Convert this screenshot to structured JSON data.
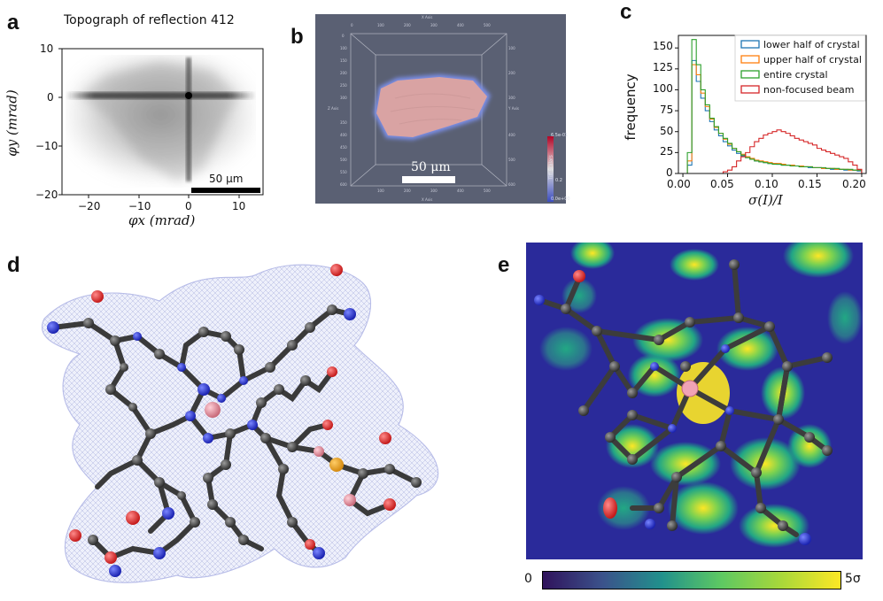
{
  "panels": {
    "a": {
      "label": "a",
      "title": "Topograph of reflection 412",
      "xlabel": "φx (mrad)",
      "ylabel": "φy (mrad)",
      "xticks": [
        "−20",
        "−10",
        "0",
        "10"
      ],
      "yticks": [
        "10",
        "0",
        "−10",
        "−20"
      ],
      "scalebar": "50 μm"
    },
    "b": {
      "label": "b",
      "scalebar": "50 μm",
      "colorbar_max": "6.5e-01",
      "colorbar_mid": "0.2",
      "colorbar_min": "0.0e+00",
      "colorbar_title": "Tiff Scalars",
      "x_axis": "X Axis",
      "y_axis": "Y Axis",
      "z_axis": "Z Axis",
      "top_ticks": [
        "0",
        "100",
        "200",
        "300",
        "400",
        "500"
      ],
      "side_ticks": [
        "0",
        "100",
        "150",
        "200",
        "250",
        "300",
        "350",
        "400",
        "450",
        "500",
        "550",
        "600"
      ]
    },
    "c": {
      "label": "c"
    },
    "d": {
      "label": "d"
    },
    "e": {
      "label": "e",
      "colorbar_min": "0",
      "colorbar_max": "5σ"
    }
  },
  "chart_data": {
    "type": "line",
    "title": "",
    "xlabel": "σ(I)/I",
    "ylabel": "frequency",
    "xlim": [
      -0.005,
      0.205
    ],
    "ylim": [
      0,
      165
    ],
    "xticks": [
      0.0,
      0.05,
      0.1,
      0.15,
      0.2
    ],
    "xtick_labels": [
      "0.00",
      "0.05",
      "0.10",
      "0.15",
      "0.20"
    ],
    "yticks": [
      0,
      25,
      50,
      75,
      100,
      125,
      150
    ],
    "legend_position": "top-right",
    "x": [
      0.0,
      0.005,
      0.01,
      0.015,
      0.02,
      0.025,
      0.03,
      0.035,
      0.04,
      0.045,
      0.05,
      0.055,
      0.06,
      0.065,
      0.07,
      0.075,
      0.08,
      0.085,
      0.09,
      0.095,
      0.1,
      0.105,
      0.11,
      0.115,
      0.12,
      0.125,
      0.13,
      0.135,
      0.14,
      0.145,
      0.15,
      0.155,
      0.16,
      0.165,
      0.17,
      0.175,
      0.18,
      0.185,
      0.19,
      0.195
    ],
    "series": [
      {
        "name": "lower half of crystal",
        "color": "#1f77b4",
        "values": [
          0,
          10,
          135,
          110,
          90,
          75,
          62,
          52,
          45,
          38,
          33,
          28,
          24,
          21,
          19,
          17,
          15,
          14,
          13,
          12,
          12,
          11,
          10,
          10,
          9,
          9,
          8,
          8,
          7,
          7,
          7,
          6,
          6,
          5,
          5,
          5,
          4,
          4,
          4,
          3
        ]
      },
      {
        "name": "upper half of crystal",
        "color": "#ff7f0e",
        "values": [
          0,
          15,
          130,
          118,
          96,
          80,
          65,
          55,
          48,
          41,
          35,
          30,
          26,
          23,
          20,
          18,
          16,
          15,
          14,
          13,
          12,
          12,
          11,
          10,
          10,
          9,
          9,
          8,
          8,
          7,
          7,
          6,
          6,
          6,
          5,
          5,
          5,
          4,
          4,
          4
        ]
      },
      {
        "name": "entire crystal",
        "color": "#2ca02c",
        "values": [
          0,
          25,
          160,
          130,
          100,
          82,
          66,
          56,
          48,
          42,
          36,
          30,
          26,
          22,
          19,
          17,
          15,
          14,
          13,
          12,
          11,
          11,
          10,
          10,
          9,
          9,
          8,
          8,
          8,
          7,
          7,
          7,
          6,
          6,
          6,
          5,
          5,
          5,
          4,
          4
        ]
      },
      {
        "name": "non-focused beam",
        "color": "#d62728",
        "values": [
          0,
          0,
          0,
          0,
          0,
          0,
          0,
          0,
          0,
          2,
          4,
          8,
          15,
          20,
          25,
          32,
          38,
          42,
          46,
          48,
          50,
          52,
          50,
          48,
          45,
          42,
          40,
          38,
          36,
          34,
          30,
          28,
          26,
          24,
          22,
          20,
          18,
          14,
          10,
          5
        ]
      }
    ]
  }
}
